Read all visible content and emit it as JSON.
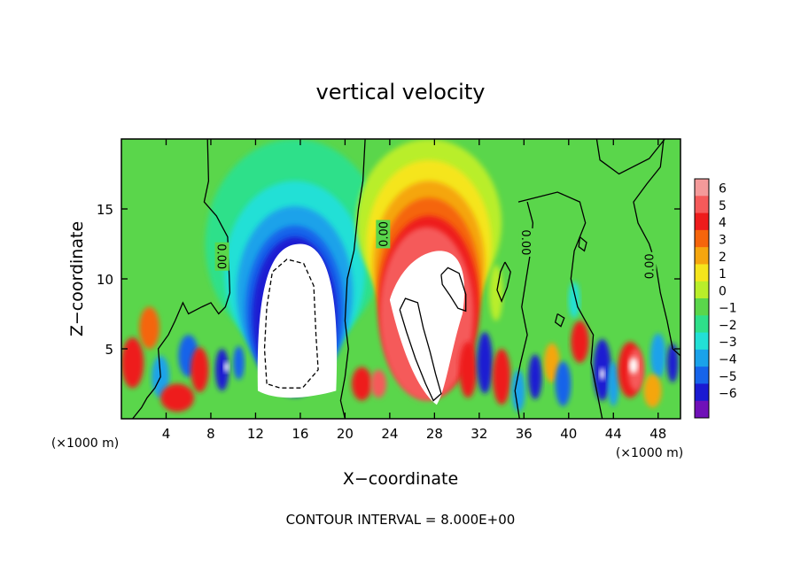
{
  "chart_data": {
    "type": "heatmap",
    "title": "vertical velocity",
    "xlabel": "X−coordinate",
    "ylabel": "Z−coordinate",
    "x_unit_left": "(×1000 m)",
    "x_unit_right": "(×1000 m)",
    "xlim": [
      0,
      50
    ],
    "ylim": [
      0,
      20
    ],
    "xticks": [
      4,
      8,
      12,
      16,
      20,
      24,
      28,
      32,
      36,
      40,
      44,
      48
    ],
    "yticks": [
      5,
      10,
      15
    ],
    "colorbar": {
      "ticks": [
        "6",
        "5",
        "4",
        "3",
        "2",
        "1",
        "0",
        "−1",
        "−2",
        "−3",
        "−4",
        "−5",
        "−6"
      ],
      "colors": [
        "#f49a9a",
        "#f55a5a",
        "#ee1c1c",
        "#f5650c",
        "#f5a60f",
        "#f5e51c",
        "#b9ee2a",
        "#5ad64b",
        "#2ee08a",
        "#22e0d6",
        "#1aa2ea",
        "#1664ea",
        "#1a1ad2",
        "#7010b8"
      ]
    },
    "contour_labels": [
      {
        "text": "0.00",
        "x": 9.0,
        "y": 11.6,
        "rotate": 90
      },
      {
        "text": "0.00",
        "x": 23.4,
        "y": 13.2,
        "rotate": -90
      },
      {
        "text": "0.00",
        "x": 36.2,
        "y": 12.6,
        "rotate": 90
      },
      {
        "text": "0.00",
        "x": 47.2,
        "y": 10.9,
        "rotate": -90
      }
    ],
    "features": [
      {
        "name": "downdraft core",
        "sign": "negative",
        "x": 15.5,
        "z": 7.0
      },
      {
        "name": "updraft core",
        "sign": "positive",
        "x": 27.5,
        "z": 7.0
      }
    ],
    "footer": "CONTOUR INTERVAL = 8.000E+00"
  }
}
